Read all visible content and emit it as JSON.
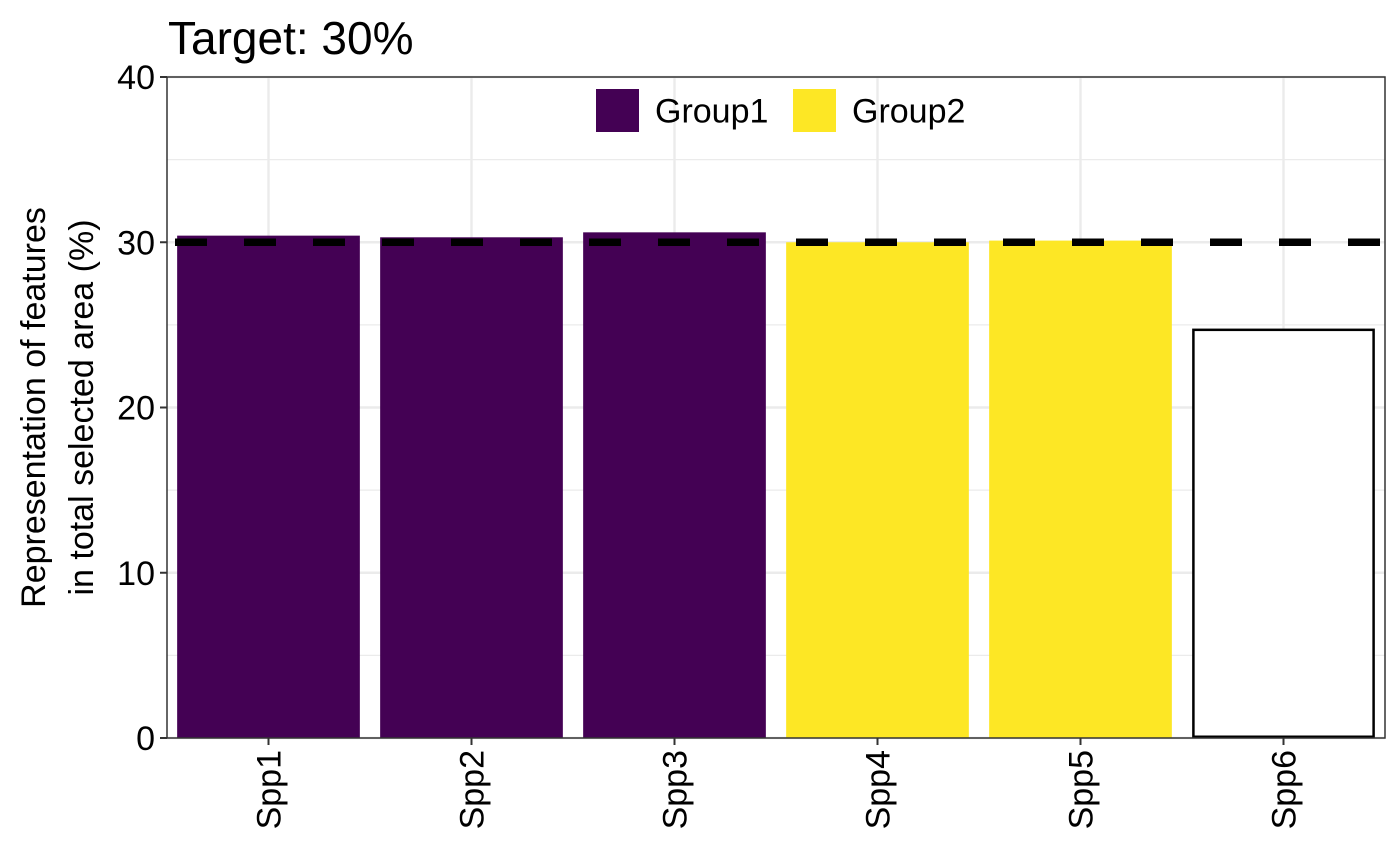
{
  "chart_data": {
    "type": "bar",
    "title": "Target: 30%",
    "xlabel": "",
    "ylabel_lines": [
      "Representation of features",
      "in total selected area (%)"
    ],
    "categories": [
      "Spp1",
      "Spp2",
      "Spp3",
      "Spp4",
      "Spp5",
      "Spp6"
    ],
    "values": [
      30.4,
      30.3,
      30.6,
      30.0,
      30.1,
      24.7
    ],
    "groups": [
      "Group1",
      "Group1",
      "Group1",
      "Group2",
      "Group2",
      null
    ],
    "legend": [
      {
        "name": "Group1",
        "color": "#440154"
      },
      {
        "name": "Group2",
        "color": "#FDE725"
      }
    ],
    "legend_placement": "top-center (inside plot)",
    "ungrouped_style": {
      "fill": "#FFFFFF",
      "stroke": "#000000"
    },
    "target_line": {
      "value": 30,
      "style": "dashed",
      "color": "#000000"
    },
    "ylim": [
      0,
      40
    ],
    "yticks": [
      0,
      10,
      20,
      30,
      40
    ],
    "grid": true,
    "x_tick_rotation": "vertical"
  }
}
